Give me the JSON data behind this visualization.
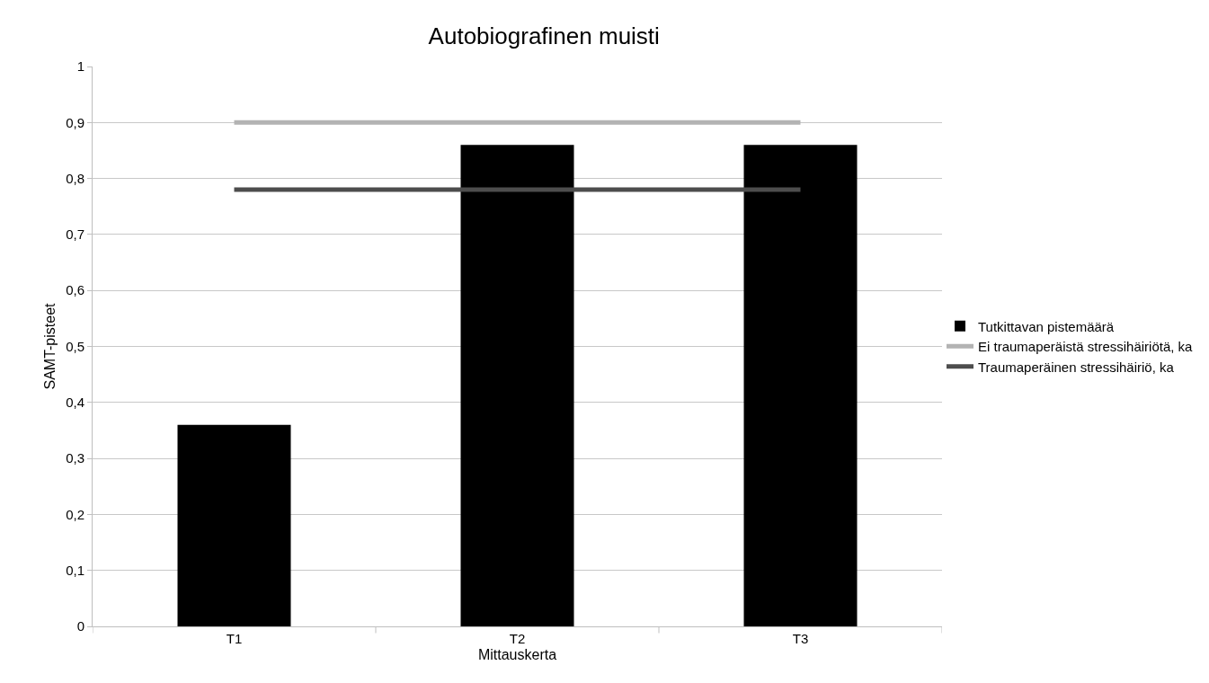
{
  "chart_data": {
    "type": "bar",
    "title": "Autobiografinen muisti",
    "xlabel": "Mittauskerta",
    "ylabel": "SAMT-pisteet",
    "categories": [
      "T1",
      "T2",
      "T3"
    ],
    "series": [
      {
        "name": "Tutkittavan pistemäärä",
        "color": "#000000",
        "values": [
          0.36,
          0.86,
          0.86
        ]
      },
      {
        "name": "Ei traumaperäistä stressihäiriötä, ka",
        "type": "line",
        "color": "#b3b3b3",
        "values": [
          0.9,
          0.9,
          0.9
        ]
      },
      {
        "name": "Traumaperäinen stressihäiriö, ka",
        "type": "line",
        "color": "#4d4d4d",
        "values": [
          0.78,
          0.78,
          0.78
        ]
      }
    ],
    "ylim": [
      0,
      1
    ],
    "yticks": [
      {
        "value": 0,
        "label": "0"
      },
      {
        "value": 0.1,
        "label": "0,1"
      },
      {
        "value": 0.2,
        "label": "0,2"
      },
      {
        "value": 0.3,
        "label": "0,3"
      },
      {
        "value": 0.4,
        "label": "0,4"
      },
      {
        "value": 0.5,
        "label": "0,5"
      },
      {
        "value": 0.6,
        "label": "0,6"
      },
      {
        "value": 0.7,
        "label": "0,7"
      },
      {
        "value": 0.8,
        "label": "0,8"
      },
      {
        "value": 0.9,
        "label": "0,9"
      },
      {
        "value": 1,
        "label": "1"
      }
    ],
    "grid": "y",
    "legend": "right",
    "marker": "none",
    "line_style": "solid"
  }
}
